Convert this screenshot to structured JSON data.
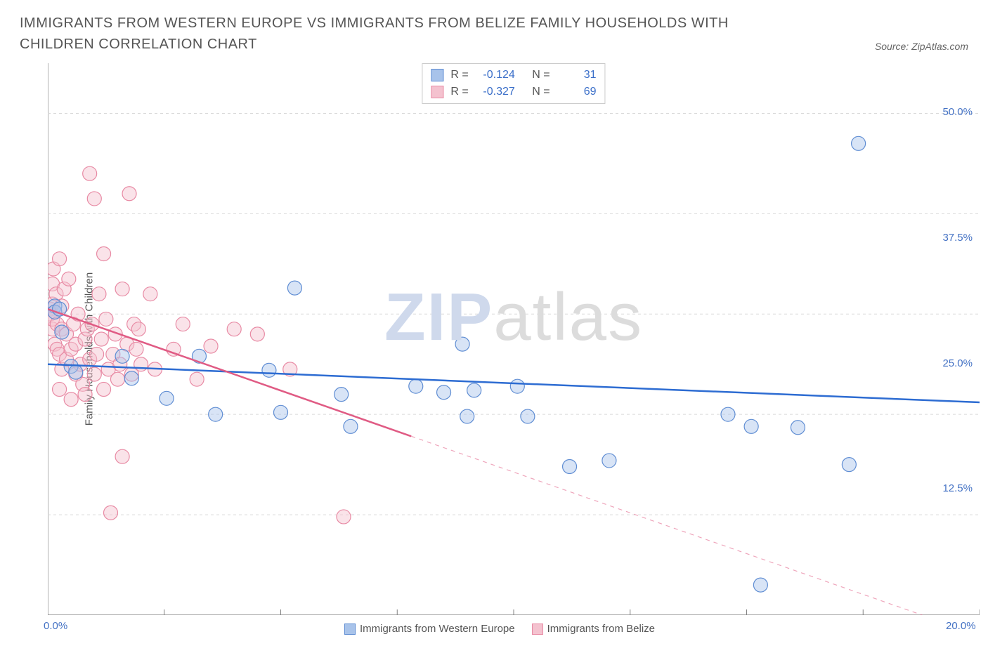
{
  "header": {
    "title": "IMMIGRANTS FROM WESTERN EUROPE VS IMMIGRANTS FROM BELIZE FAMILY HOUSEHOLDS WITH CHILDREN CORRELATION CHART",
    "source_prefix": "Source: ",
    "source_name": "ZipAtlas.com"
  },
  "watermark": {
    "zip": "ZIP",
    "atlas": "atlas"
  },
  "chart": {
    "type": "scatter",
    "background_color": "#ffffff",
    "grid_color": "#d9d9d9",
    "axis_color": "#808080",
    "y_axis_label": "Family Households with Children",
    "x_range": [
      0,
      20
    ],
    "y_range": [
      0,
      55
    ],
    "x_ticks": [
      0,
      2.5,
      5,
      7.5,
      10,
      12.5,
      15,
      17.5,
      20
    ],
    "x_tick_labels": {
      "0": "0.0%",
      "20": "20.0%"
    },
    "y_gridlines": [
      10,
      20,
      30,
      40,
      50
    ],
    "y_tick_labels": {
      "12.5": "12.5%",
      "25": "25.0%",
      "37.5": "37.5%",
      "50": "50.0%"
    },
    "marker_radius": 10,
    "marker_opacity": 0.45,
    "series": [
      {
        "id": "western_europe",
        "label": "Immigrants from Western Europe",
        "fill": "#a8c3ea",
        "stroke": "#5f8dd3",
        "trend_color": "#2d6cd2",
        "trend_width": 2.5,
        "trend_dash": "none",
        "R": "-0.124",
        "N": "31",
        "trend": {
          "x1": 0,
          "y1": 25.0,
          "x2": 20,
          "y2": 21.2
        },
        "points": [
          [
            0.15,
            30.8
          ],
          [
            0.15,
            30.2
          ],
          [
            0.25,
            30.5
          ],
          [
            0.3,
            28.2
          ],
          [
            0.5,
            24.8
          ],
          [
            0.6,
            24.2
          ],
          [
            1.6,
            25.8
          ],
          [
            1.8,
            23.6
          ],
          [
            2.55,
            21.6
          ],
          [
            3.25,
            25.8
          ],
          [
            3.6,
            20.0
          ],
          [
            4.75,
            24.4
          ],
          [
            5.0,
            20.2
          ],
          [
            5.3,
            32.6
          ],
          [
            6.3,
            22.0
          ],
          [
            6.5,
            18.8
          ],
          [
            7.9,
            22.8
          ],
          [
            8.5,
            22.2
          ],
          [
            8.9,
            27.0
          ],
          [
            9.0,
            19.8
          ],
          [
            9.15,
            22.4
          ],
          [
            10.08,
            22.8
          ],
          [
            10.3,
            19.8
          ],
          [
            11.2,
            14.8
          ],
          [
            12.05,
            15.4
          ],
          [
            14.6,
            20.0
          ],
          [
            15.1,
            18.8
          ],
          [
            15.3,
            3.0
          ],
          [
            16.1,
            18.7
          ],
          [
            17.2,
            15.0
          ],
          [
            17.4,
            47.0
          ]
        ]
      },
      {
        "id": "belize",
        "label": "Immigrants from Belize",
        "fill": "#f4c2cf",
        "stroke": "#e88aa4",
        "trend_color": "#e05b84",
        "trend_width": 2.5,
        "trend_dash": "solid_then_dash",
        "trend_dash_break_x": 7.8,
        "R": "-0.327",
        "N": "69",
        "trend": {
          "x1": 0,
          "y1": 30.5,
          "x2": 20,
          "y2": -2.0
        },
        "points": [
          [
            0.05,
            30.5
          ],
          [
            0.05,
            30.0
          ],
          [
            0.1,
            28.5
          ],
          [
            0.1,
            31.0
          ],
          [
            0.1,
            29.5
          ],
          [
            0.1,
            33.0
          ],
          [
            0.12,
            34.5
          ],
          [
            0.15,
            30.2
          ],
          [
            0.15,
            27.0
          ],
          [
            0.18,
            32.0
          ],
          [
            0.2,
            26.5
          ],
          [
            0.2,
            29.0
          ],
          [
            0.25,
            35.5
          ],
          [
            0.25,
            26.0
          ],
          [
            0.25,
            22.5
          ],
          [
            0.3,
            28.5
          ],
          [
            0.3,
            24.5
          ],
          [
            0.3,
            30.8
          ],
          [
            0.35,
            32.5
          ],
          [
            0.4,
            28.0
          ],
          [
            0.4,
            25.5
          ],
          [
            0.45,
            33.5
          ],
          [
            0.5,
            26.5
          ],
          [
            0.5,
            21.5
          ],
          [
            0.55,
            29.0
          ],
          [
            0.6,
            27.0
          ],
          [
            0.6,
            24.0
          ],
          [
            0.65,
            30.0
          ],
          [
            0.7,
            25.0
          ],
          [
            0.75,
            23.0
          ],
          [
            0.8,
            27.5
          ],
          [
            0.8,
            22.0
          ],
          [
            0.85,
            28.5
          ],
          [
            0.9,
            25.5
          ],
          [
            0.9,
            44.0
          ],
          [
            0.95,
            29.0
          ],
          [
            1.0,
            41.5
          ],
          [
            1.0,
            24.0
          ],
          [
            1.05,
            26.0
          ],
          [
            1.1,
            32.0
          ],
          [
            1.15,
            27.5
          ],
          [
            1.2,
            22.5
          ],
          [
            1.2,
            36.0
          ],
          [
            1.25,
            29.5
          ],
          [
            1.3,
            24.5
          ],
          [
            1.35,
            10.2
          ],
          [
            1.4,
            26.0
          ],
          [
            1.45,
            28.0
          ],
          [
            1.5,
            23.5
          ],
          [
            1.55,
            25.0
          ],
          [
            1.6,
            32.5
          ],
          [
            1.6,
            15.8
          ],
          [
            1.7,
            27.0
          ],
          [
            1.75,
            42.0
          ],
          [
            1.8,
            24.0
          ],
          [
            1.85,
            29.0
          ],
          [
            1.9,
            26.5
          ],
          [
            1.95,
            28.5
          ],
          [
            2.0,
            25.0
          ],
          [
            2.2,
            32.0
          ],
          [
            2.3,
            24.5
          ],
          [
            2.7,
            26.5
          ],
          [
            2.9,
            29.0
          ],
          [
            3.2,
            23.5
          ],
          [
            3.5,
            26.8
          ],
          [
            4.0,
            28.5
          ],
          [
            4.5,
            28.0
          ],
          [
            5.2,
            24.5
          ],
          [
            6.35,
            9.8
          ]
        ]
      }
    ],
    "stats_labels": {
      "R": "R =",
      "N": "N ="
    },
    "legend_position": "top_center_stats_and_bottom_center_series"
  }
}
